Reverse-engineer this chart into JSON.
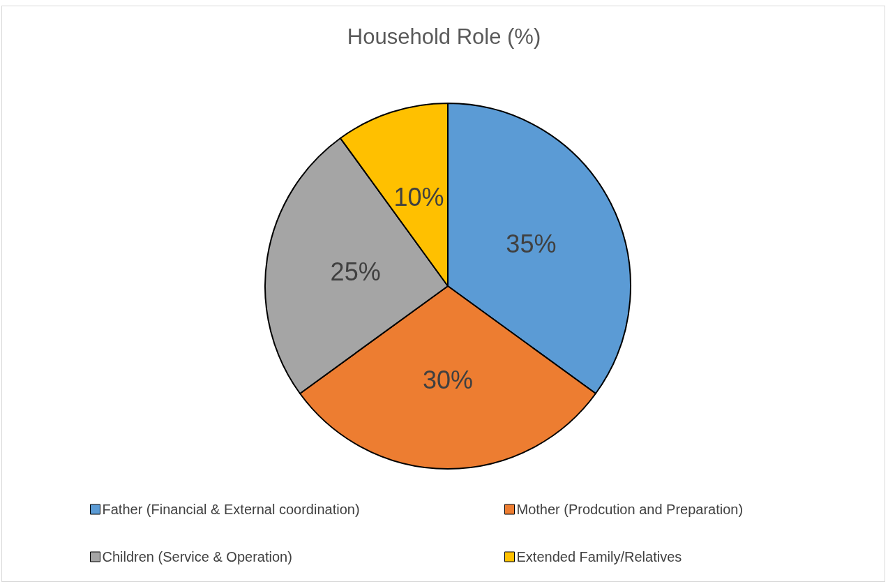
{
  "chart_data": {
    "type": "pie",
    "title": "Household Role (%)",
    "categories": [
      "Father (Financial & External coordination)",
      "Mother (Prodcution and Preparation)",
      "Children (Service & Operation)",
      "Extended Family/Relatives"
    ],
    "values": [
      35,
      30,
      25,
      10
    ],
    "colors": [
      "#5b9bd5",
      "#ed7d31",
      "#a5a5a5",
      "#ffc000"
    ],
    "value_labels": [
      "35%",
      "30%",
      "25%",
      "10%"
    ],
    "legend": "bottom"
  }
}
